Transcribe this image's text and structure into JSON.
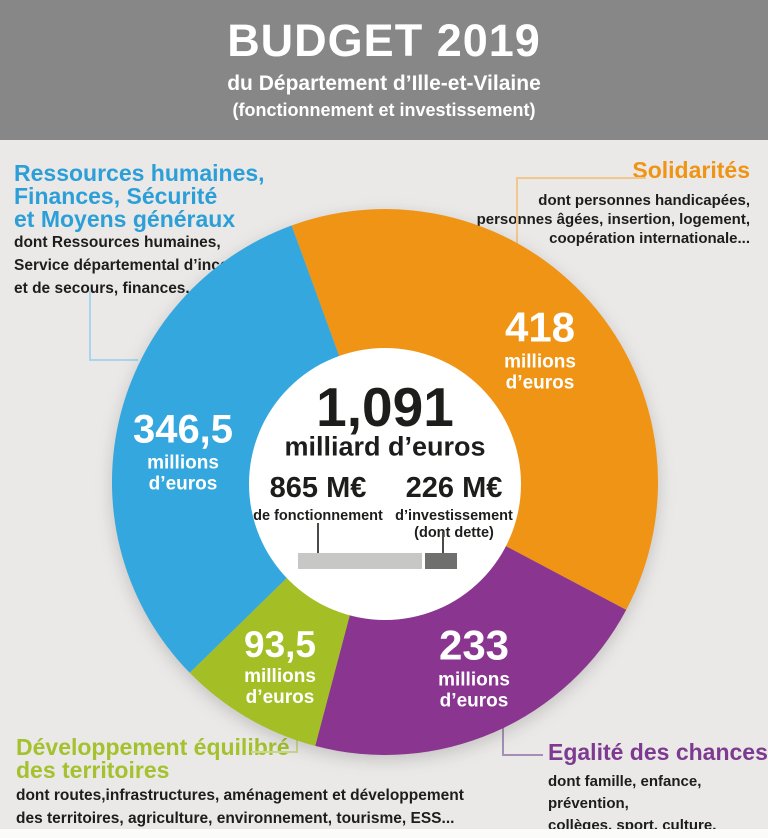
{
  "header": {
    "title": "BUDGET 2019",
    "subtitle": "du Département d’Ille-et-Vilaine",
    "subtitle2": "(fonctionnement et investissement)"
  },
  "chart_data": {
    "type": "pie",
    "variant": "donut",
    "title": "BUDGET 2019 du Département d’Ille-et-Vilaine (fonctionnement et investissement)",
    "unit": "millions d'euros",
    "total": 1091,
    "start_angle_deg": -20,
    "direction": "clockwise",
    "center_total": {
      "value": "1,091",
      "unit_label": "milliard d’euros"
    },
    "segments": [
      {
        "slug": "solidarites",
        "name": "Solidarités",
        "value": 418,
        "value_display": "418",
        "unit_line1": "millions",
        "unit_line2": "d’euros",
        "color": "#ef9414",
        "detail": "dont personnes handicapées, personnes âgées, insertion, logement, coopération internationale..."
      },
      {
        "slug": "egalite-des-chances",
        "name": "Egalité des chances",
        "value": 233,
        "value_display": "233",
        "unit_line1": "millions",
        "unit_line2": "d’euros",
        "color": "#8a3590",
        "detail": "dont famille, enfance, prévention, collèges, sport, culture, jeunesse..."
      },
      {
        "slug": "developpement-territoires",
        "name": "Développement équilibré des territoires",
        "value": 93.5,
        "value_display": "93,5",
        "unit_line1": "millions",
        "unit_line2": "d’euros",
        "color": "#a3bf25",
        "detail": "dont routes,infrastructures, aménagement et développement des territoires, agriculture, environnement, tourisme, ESS..."
      },
      {
        "slug": "ressources-humaines",
        "name": "Ressources humaines, Finances, Sécurité et Moyens généraux",
        "value": 346.5,
        "value_display": "346,5",
        "unit_line1": "millions",
        "unit_line2": "d’euros",
        "color": "#33a7de",
        "detail": "dont Ressources humaines, Service départemental d’incendie et de secours, finances..."
      }
    ],
    "breakdown_bar": {
      "total": 1091,
      "parts": [
        {
          "value": 865,
          "value_display": "865 M€",
          "label": "de fonctionnement",
          "label_lines": [
            "de fonctionnement"
          ],
          "color": "#c7c7c6"
        },
        {
          "value": 226,
          "value_display": "226 M€",
          "label": "d’investissement (dont dette)",
          "label_lines": [
            "d’investissement",
            "(dont dette)"
          ],
          "color": "#6f6f6e"
        }
      ]
    }
  },
  "labels": {
    "ressources": {
      "heading_lines": [
        "Ressources humaines,",
        "Finances, Sécurité",
        "et Moyens généraux"
      ],
      "detail_lines": [
        "dont Ressources humaines,",
        "Service départemental d’incendie",
        "et de secours, finances..."
      ]
    },
    "solidarites": {
      "heading": "Solidarités",
      "detail_lines": [
        "dont personnes handicapées,",
        "personnes âgées, insertion, logement,",
        "coopération internationale..."
      ]
    },
    "territoires": {
      "heading_lines": [
        "Développement équilibré",
        "des territoires"
      ],
      "detail_lines": [
        "dont routes,infrastructures, aménagement et développement",
        "des territoires, agriculture, environnement, tourisme, ESS..."
      ]
    },
    "egalite": {
      "heading": "Egalité des chances",
      "detail_lines": [
        "dont famille, enfance, prévention,",
        "collèges, sport, culture, jeunesse..."
      ]
    }
  },
  "palette": {
    "header_gray": "#878787",
    "background": "#eae9e7",
    "blue": "#33a7de",
    "orange": "#ef9414",
    "green": "#a3bf25",
    "purple": "#8a3590",
    "text_dark": "#1d1d1b",
    "bar_light_gray": "#c7c7c6",
    "bar_dark_gray": "#6f6f6e"
  }
}
